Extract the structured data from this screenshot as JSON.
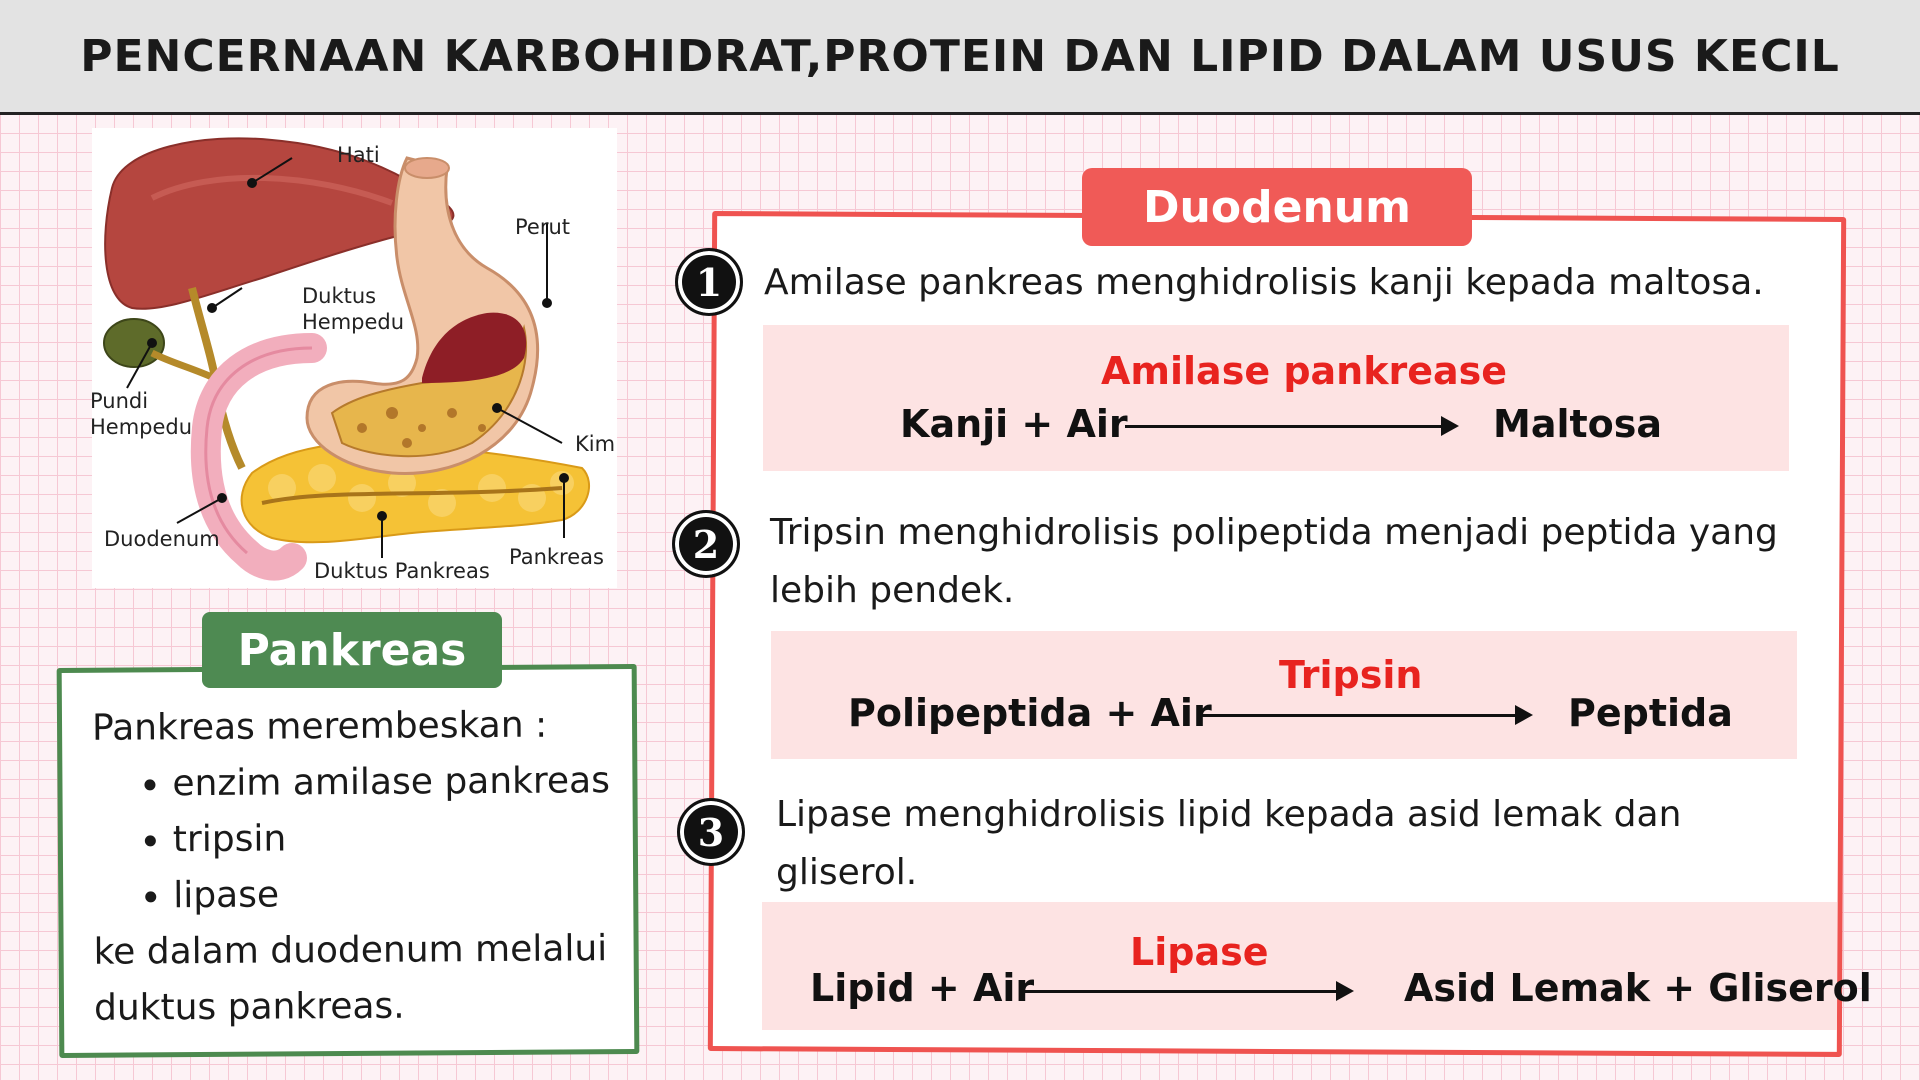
{
  "header": {
    "title": "PENCERNAAN KARBOHIDRAT,PROTEIN DAN LIPID DALAM USUS KECIL"
  },
  "anatomy": {
    "labels": {
      "hati": "Hati",
      "perut": "Perut",
      "duktus_hempedu": "Duktus\nHempedu",
      "pundi_hempedu": "Pundi\nHempedu",
      "kim": "Kim",
      "duodenum": "Duodenum",
      "duktus_pankreas": "Duktus Pankreas",
      "pankreas": "Pankreas"
    }
  },
  "pankreas_box": {
    "title": "Pankreas",
    "intro": "Pankreas merembeskan :",
    "items": [
      "enzim amilase pankreas",
      "tripsin",
      "lipase"
    ],
    "outro": "ke dalam duodenum melalui duktus pankreas."
  },
  "duodenum_box": {
    "title": "Duodenum",
    "steps": [
      {
        "number": "1",
        "statement": "Amilase pankreas menghidrolisis kanji kepada maltosa.",
        "enzyme": "Amilase pankrease",
        "reactants": "Kanji + Air",
        "products": "Maltosa"
      },
      {
        "number": "2",
        "statement": "Tripsin menghidrolisis polipeptida menjadi peptida yang lebih pendek.",
        "enzyme": "Tripsin",
        "reactants": "Polipeptida + Air",
        "products": "Peptida"
      },
      {
        "number": "3",
        "statement": "Lipase menghidrolisis lipid kepada asid lemak dan gliserol.",
        "enzyme": "Lipase",
        "reactants": "Lipid + Air",
        "products": "Asid Lemak + Gliserol"
      }
    ]
  },
  "colors": {
    "header_bg": "#e3e3e3",
    "duodenum_accent": "#f05a57",
    "pankreas_accent": "#4e8a52",
    "enzyme_text": "#e8231f",
    "equation_bg": "#fde3e3"
  }
}
